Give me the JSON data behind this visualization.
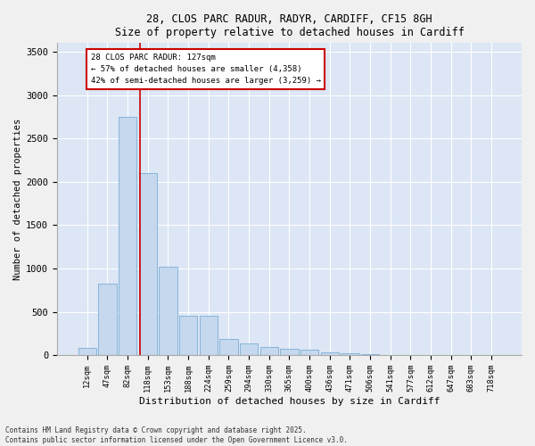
{
  "title_line1": "28, CLOS PARC RADUR, RADYR, CARDIFF, CF15 8GH",
  "title_line2": "Size of property relative to detached houses in Cardiff",
  "xlabel": "Distribution of detached houses by size in Cardiff",
  "ylabel": "Number of detached properties",
  "bar_color": "#c5d8ee",
  "bar_edge_color": "#7aadd4",
  "background_color": "#dce6f5",
  "fig_background": "#f0f0f0",
  "categories": [
    "12sqm",
    "47sqm",
    "82sqm",
    "118sqm",
    "153sqm",
    "188sqm",
    "224sqm",
    "259sqm",
    "294sqm",
    "330sqm",
    "365sqm",
    "400sqm",
    "436sqm",
    "471sqm",
    "506sqm",
    "541sqm",
    "577sqm",
    "612sqm",
    "647sqm",
    "683sqm",
    "718sqm"
  ],
  "values": [
    80,
    830,
    2750,
    2100,
    1020,
    455,
    455,
    190,
    140,
    90,
    70,
    60,
    35,
    20,
    10,
    5,
    4,
    3,
    2,
    1,
    1
  ],
  "annotation_text": "28 CLOS PARC RADUR: 127sqm\n← 57% of detached houses are smaller (4,358)\n42% of semi-detached houses are larger (3,259) →",
  "annotation_box_color": "#ffffff",
  "annotation_box_edge": "#cc0000",
  "vline_color": "#cc0000",
  "vline_x": 2.62,
  "ylim": [
    0,
    3600
  ],
  "yticks": [
    0,
    500,
    1000,
    1500,
    2000,
    2500,
    3000,
    3500
  ],
  "footer_line1": "Contains HM Land Registry data © Crown copyright and database right 2025.",
  "footer_line2": "Contains public sector information licensed under the Open Government Licence v3.0."
}
